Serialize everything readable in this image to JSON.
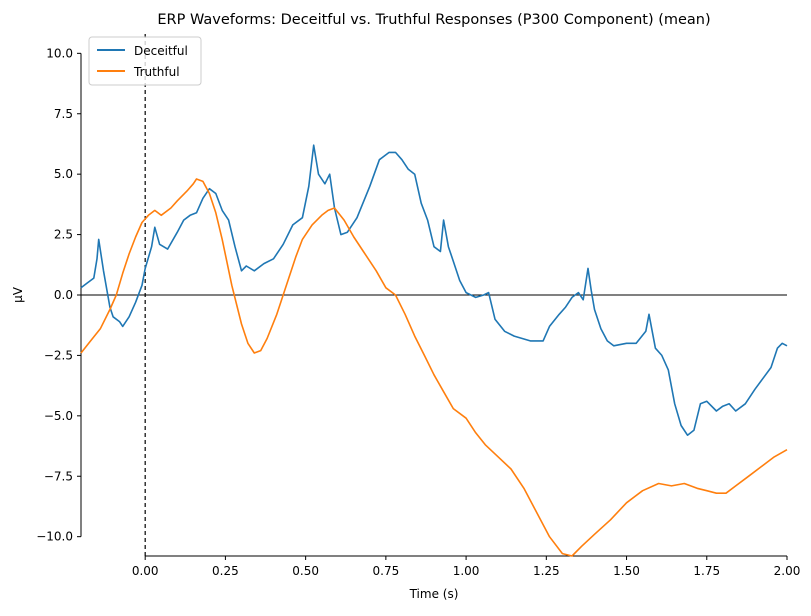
{
  "chart_data": {
    "type": "line",
    "title": "ERP Waveforms: Deceitful vs. Truthful Responses (P300 Component) (mean)",
    "xlabel": "Time (s)",
    "ylabel": "μV",
    "xlim": [
      -0.2,
      2.0
    ],
    "ylim": [
      -10.8,
      10.8
    ],
    "x_ticks": [
      0.0,
      0.25,
      0.5,
      0.75,
      1.0,
      1.25,
      1.5,
      1.75,
      2.0
    ],
    "x_tick_labels": [
      "0.00",
      "0.25",
      "0.50",
      "0.75",
      "1.00",
      "1.25",
      "1.50",
      "1.75",
      "2.00"
    ],
    "y_ticks": [
      10.0,
      7.5,
      5.0,
      2.5,
      0.0,
      -2.5,
      -5.0,
      -7.5,
      -10.0
    ],
    "y_tick_labels": [
      "10.0",
      "7.5",
      "5.0",
      "2.5",
      "0.0",
      "−2.5",
      "−5.0",
      "−7.5",
      "−10.0"
    ],
    "zero_line_y": 0,
    "stimulus_onset_x": 0,
    "grid": false,
    "legend_position": "top-left",
    "series": [
      {
        "name": "Deceitful",
        "color": "#1f77b4",
        "points": [
          [
            -0.2,
            0.3
          ],
          [
            -0.18,
            0.5
          ],
          [
            -0.16,
            0.7
          ],
          [
            -0.15,
            1.5
          ],
          [
            -0.145,
            2.3
          ],
          [
            -0.13,
            1.0
          ],
          [
            -0.11,
            -0.5
          ],
          [
            -0.1,
            -0.9
          ],
          [
            -0.08,
            -1.1
          ],
          [
            -0.07,
            -1.3
          ],
          [
            -0.05,
            -0.9
          ],
          [
            -0.03,
            -0.3
          ],
          [
            -0.01,
            0.4
          ],
          [
            0.0,
            1.1
          ],
          [
            0.02,
            2.0
          ],
          [
            0.03,
            2.8
          ],
          [
            0.045,
            2.1
          ],
          [
            0.07,
            1.9
          ],
          [
            0.1,
            2.6
          ],
          [
            0.12,
            3.1
          ],
          [
            0.14,
            3.3
          ],
          [
            0.16,
            3.4
          ],
          [
            0.18,
            4.0
          ],
          [
            0.2,
            4.4
          ],
          [
            0.22,
            4.2
          ],
          [
            0.24,
            3.5
          ],
          [
            0.26,
            3.1
          ],
          [
            0.28,
            2.0
          ],
          [
            0.3,
            1.0
          ],
          [
            0.315,
            1.2
          ],
          [
            0.34,
            1.0
          ],
          [
            0.37,
            1.3
          ],
          [
            0.4,
            1.5
          ],
          [
            0.43,
            2.1
          ],
          [
            0.46,
            2.9
          ],
          [
            0.49,
            3.2
          ],
          [
            0.51,
            4.5
          ],
          [
            0.525,
            6.2
          ],
          [
            0.54,
            5.0
          ],
          [
            0.56,
            4.6
          ],
          [
            0.575,
            5.0
          ],
          [
            0.59,
            3.6
          ],
          [
            0.61,
            2.5
          ],
          [
            0.63,
            2.6
          ],
          [
            0.66,
            3.2
          ],
          [
            0.7,
            4.5
          ],
          [
            0.73,
            5.6
          ],
          [
            0.76,
            5.9
          ],
          [
            0.78,
            5.9
          ],
          [
            0.8,
            5.6
          ],
          [
            0.82,
            5.2
          ],
          [
            0.84,
            5.0
          ],
          [
            0.86,
            3.8
          ],
          [
            0.88,
            3.1
          ],
          [
            0.9,
            2.0
          ],
          [
            0.92,
            1.8
          ],
          [
            0.93,
            3.1
          ],
          [
            0.945,
            2.0
          ],
          [
            0.96,
            1.4
          ],
          [
            0.98,
            0.6
          ],
          [
            1.0,
            0.1
          ],
          [
            1.03,
            -0.1
          ],
          [
            1.055,
            0.0
          ],
          [
            1.07,
            0.1
          ],
          [
            1.09,
            -1.0
          ],
          [
            1.12,
            -1.5
          ],
          [
            1.15,
            -1.7
          ],
          [
            1.2,
            -1.9
          ],
          [
            1.24,
            -1.9
          ],
          [
            1.26,
            -1.3
          ],
          [
            1.29,
            -0.8
          ],
          [
            1.31,
            -0.5
          ],
          [
            1.33,
            -0.1
          ],
          [
            1.35,
            0.1
          ],
          [
            1.365,
            -0.2
          ],
          [
            1.38,
            1.1
          ],
          [
            1.39,
            0.2
          ],
          [
            1.4,
            -0.6
          ],
          [
            1.42,
            -1.4
          ],
          [
            1.44,
            -1.9
          ],
          [
            1.46,
            -2.1
          ],
          [
            1.5,
            -2.0
          ],
          [
            1.53,
            -2.0
          ],
          [
            1.56,
            -1.5
          ],
          [
            1.57,
            -0.8
          ],
          [
            1.59,
            -2.2
          ],
          [
            1.61,
            -2.5
          ],
          [
            1.63,
            -3.1
          ],
          [
            1.65,
            -4.5
          ],
          [
            1.67,
            -5.4
          ],
          [
            1.69,
            -5.8
          ],
          [
            1.71,
            -5.6
          ],
          [
            1.73,
            -4.5
          ],
          [
            1.75,
            -4.4
          ],
          [
            1.78,
            -4.8
          ],
          [
            1.8,
            -4.6
          ],
          [
            1.82,
            -4.5
          ],
          [
            1.84,
            -4.8
          ],
          [
            1.87,
            -4.5
          ],
          [
            1.9,
            -3.9
          ],
          [
            1.95,
            -3.0
          ],
          [
            1.97,
            -2.2
          ],
          [
            1.985,
            -2.0
          ],
          [
            2.0,
            -2.1
          ]
        ]
      },
      {
        "name": "Truthful",
        "color": "#ff7f0e",
        "points": [
          [
            -0.2,
            -2.4
          ],
          [
            -0.17,
            -1.9
          ],
          [
            -0.14,
            -1.4
          ],
          [
            -0.11,
            -0.6
          ],
          [
            -0.09,
            0.0
          ],
          [
            -0.07,
            0.9
          ],
          [
            -0.05,
            1.7
          ],
          [
            -0.03,
            2.4
          ],
          [
            -0.01,
            3.0
          ],
          [
            0.01,
            3.3
          ],
          [
            0.03,
            3.5
          ],
          [
            0.05,
            3.3
          ],
          [
            0.08,
            3.6
          ],
          [
            0.1,
            3.9
          ],
          [
            0.13,
            4.3
          ],
          [
            0.15,
            4.6
          ],
          [
            0.16,
            4.8
          ],
          [
            0.18,
            4.7
          ],
          [
            0.2,
            4.2
          ],
          [
            0.22,
            3.4
          ],
          [
            0.24,
            2.3
          ],
          [
            0.27,
            0.4
          ],
          [
            0.3,
            -1.2
          ],
          [
            0.32,
            -2.0
          ],
          [
            0.34,
            -2.4
          ],
          [
            0.36,
            -2.3
          ],
          [
            0.38,
            -1.8
          ],
          [
            0.41,
            -0.8
          ],
          [
            0.44,
            0.4
          ],
          [
            0.47,
            1.6
          ],
          [
            0.49,
            2.3
          ],
          [
            0.52,
            2.9
          ],
          [
            0.55,
            3.3
          ],
          [
            0.57,
            3.5
          ],
          [
            0.59,
            3.6
          ],
          [
            0.62,
            3.1
          ],
          [
            0.65,
            2.4
          ],
          [
            0.68,
            1.8
          ],
          [
            0.72,
            1.0
          ],
          [
            0.75,
            0.3
          ],
          [
            0.78,
            0.0
          ],
          [
            0.81,
            -0.8
          ],
          [
            0.84,
            -1.7
          ],
          [
            0.87,
            -2.5
          ],
          [
            0.9,
            -3.3
          ],
          [
            0.93,
            -4.0
          ],
          [
            0.96,
            -4.7
          ],
          [
            1.0,
            -5.1
          ],
          [
            1.03,
            -5.7
          ],
          [
            1.06,
            -6.2
          ],
          [
            1.1,
            -6.7
          ],
          [
            1.14,
            -7.2
          ],
          [
            1.18,
            -8.0
          ],
          [
            1.22,
            -9.0
          ],
          [
            1.26,
            -10.0
          ],
          [
            1.3,
            -10.7
          ],
          [
            1.33,
            -10.8
          ],
          [
            1.36,
            -10.4
          ],
          [
            1.4,
            -9.9
          ],
          [
            1.45,
            -9.3
          ],
          [
            1.5,
            -8.6
          ],
          [
            1.55,
            -8.1
          ],
          [
            1.6,
            -7.8
          ],
          [
            1.64,
            -7.9
          ],
          [
            1.68,
            -7.8
          ],
          [
            1.72,
            -8.0
          ],
          [
            1.75,
            -8.1
          ],
          [
            1.78,
            -8.2
          ],
          [
            1.81,
            -8.2
          ],
          [
            1.84,
            -7.9
          ],
          [
            1.88,
            -7.5
          ],
          [
            1.92,
            -7.1
          ],
          [
            1.96,
            -6.7
          ],
          [
            2.0,
            -6.4
          ]
        ]
      }
    ]
  }
}
